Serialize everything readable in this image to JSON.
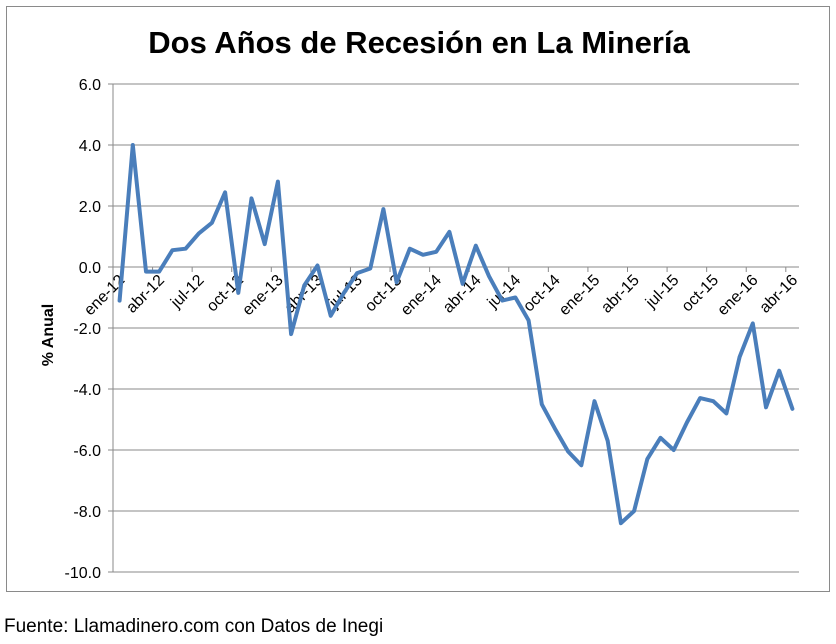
{
  "chart_data": {
    "type": "line",
    "title": "Dos Años de Recesión en La Minería",
    "xlabel": "",
    "ylabel": "% Anual",
    "ylim": [
      -10.0,
      6.0
    ],
    "yticks": [
      -10.0,
      -8.0,
      -6.0,
      -4.0,
      -2.0,
      0.0,
      2.0,
      4.0,
      6.0
    ],
    "ytick_labels": [
      "-10.0",
      "-8.0",
      "-6.0",
      "-4.0",
      "-2.0",
      "0.0",
      "2.0",
      "4.0",
      "6.0"
    ],
    "xtick_labels": [
      "ene-12",
      "abr-12",
      "jul-12",
      "oct-12",
      "ene-13",
      "abr-13",
      "jul-13",
      "oct-13",
      "ene-14",
      "abr-14",
      "jul-14",
      "oct-14",
      "ene-15",
      "abr-15",
      "jul-15",
      "oct-15",
      "ene-16",
      "abr-16"
    ],
    "grid": true,
    "line_color": "#4a7ebb",
    "series": [
      {
        "values": [
          -1.1,
          4.0,
          -0.15,
          -0.15,
          0.55,
          0.6,
          1.1,
          1.45,
          2.45,
          -0.85,
          2.25,
          0.75,
          2.8,
          -2.2,
          -0.6,
          0.05,
          -1.6,
          -0.85,
          -0.2,
          -0.05,
          1.9,
          -0.5,
          0.6,
          0.4,
          0.5,
          1.15,
          -0.55,
          0.7,
          -0.3,
          -1.1,
          -1.0,
          -1.75,
          -4.5,
          -5.3,
          -6.05,
          -6.5,
          -4.4,
          -5.7,
          -8.4,
          -8.0,
          -6.3,
          -5.6,
          -6.0,
          -5.1,
          -4.3,
          -4.4,
          -4.8,
          -2.95,
          -1.85,
          -4.6,
          -3.4,
          -4.65
        ]
      }
    ]
  },
  "footer": {
    "source": "Fuente: Llamadinero.com  con Datos de Inegi"
  }
}
